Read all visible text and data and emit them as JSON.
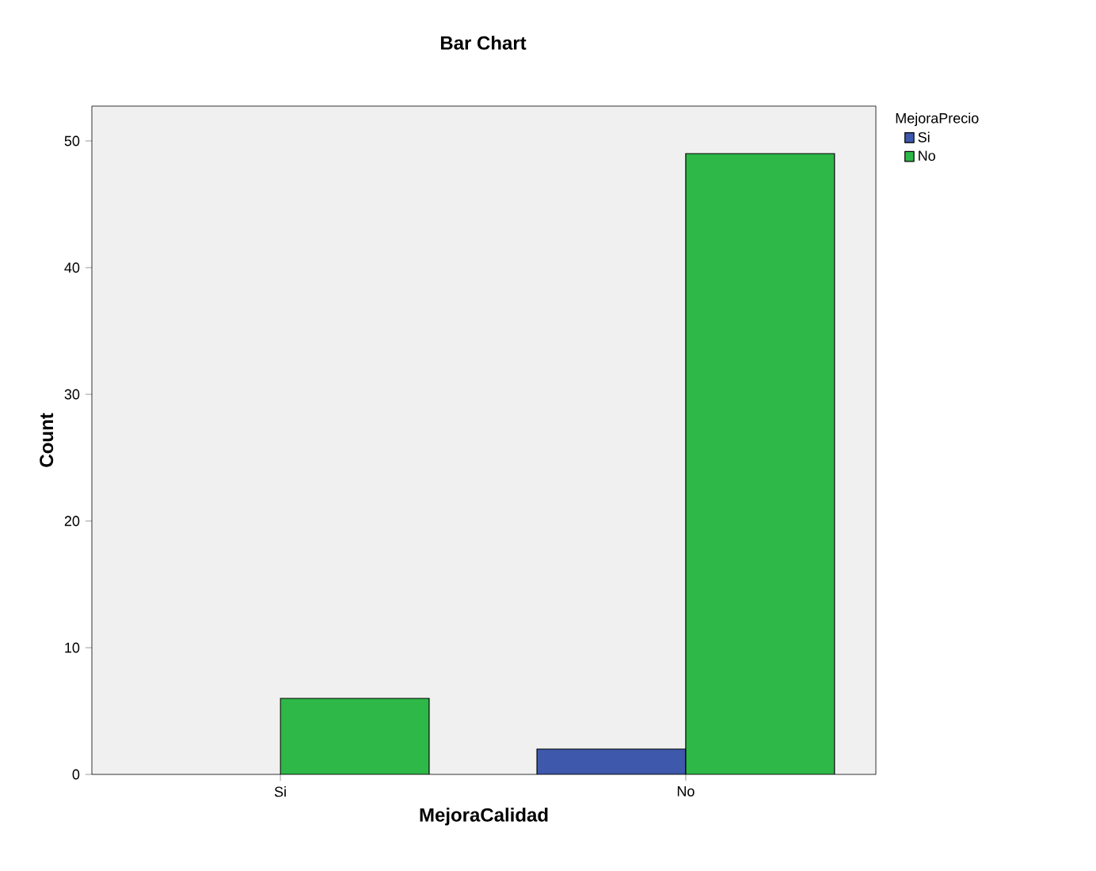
{
  "chart_data": {
    "type": "bar",
    "title": "Bar Chart",
    "xlabel": "MejoraCalidad",
    "ylabel": "Count",
    "legend_title": "MejoraPrecio",
    "legend": "right",
    "categories": [
      "Si",
      "No"
    ],
    "series": [
      {
        "name": "Si",
        "color": "#3e58ac",
        "values": [
          null,
          2
        ]
      },
      {
        "name": "No",
        "color": "#2eb848",
        "values": [
          6,
          49
        ]
      }
    ],
    "ylim": [
      0,
      52.75
    ],
    "yticks": [
      0,
      10,
      20,
      30,
      40,
      50
    ]
  }
}
